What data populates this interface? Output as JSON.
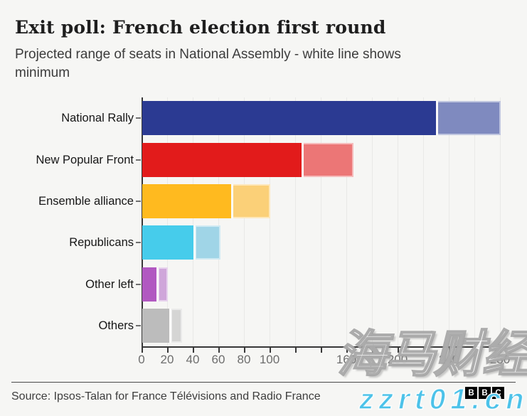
{
  "header": {
    "title": "Exit poll: French election first round",
    "subtitle": "Projected range of seats in National Assembly - white line shows minimum"
  },
  "chart_data": {
    "type": "bar",
    "orientation": "horizontal",
    "title": "Exit poll: French election first round",
    "subtitle": "Projected range of seats in National Assembly - white line shows minimum",
    "categories": [
      "National Rally",
      "New Popular Front",
      "Ensemble alliance",
      "Republicans",
      "Other left",
      "Others"
    ],
    "series": [
      {
        "name": "minimum seats (white line / end of dark bar)",
        "values": [
          230,
          125,
          70,
          41,
          12,
          22
        ]
      },
      {
        "name": "maximum seats (end of light bar)",
        "values": [
          280,
          165,
          100,
          61,
          20,
          31
        ]
      }
    ],
    "bar_colors_dark": [
      "#2b3a92",
      "#e21b1b",
      "#ffba1f",
      "#46cceb",
      "#b158c1",
      "#bcbcbc"
    ],
    "bar_colors_light": [
      "#7f8abf",
      "#ec7676",
      "#fbd078",
      "#a0d5e7",
      "#cfa6da",
      "#d5d5d4"
    ],
    "xlabel": "",
    "ylabel": "",
    "xlim": [
      0,
      280
    ],
    "x_tick_step": 20,
    "x_tick_labels": [
      "0",
      "20",
      "40",
      "60",
      "80",
      "100",
      "",
      "",
      "160",
      "",
      "200",
      "",
      "240",
      "",
      "280"
    ],
    "grid": true,
    "legend": false
  },
  "footer": {
    "source": "Source: Ipsos-Talan for France Télévisions and Radio France",
    "logo_letters": [
      "B",
      "B",
      "C"
    ]
  },
  "watermark": {
    "main": "海马财经",
    "secondary": "zzrt01.cn"
  }
}
